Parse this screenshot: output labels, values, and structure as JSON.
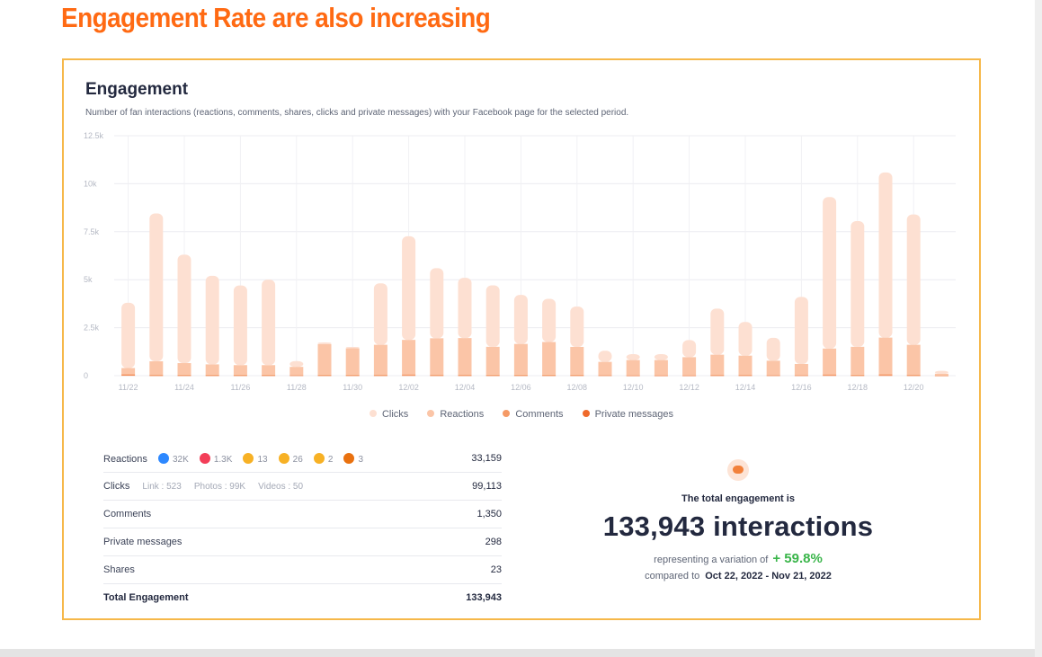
{
  "slide": {
    "title": "Engagement Rate are also increasing"
  },
  "card": {
    "title": "Engagement",
    "subtitle": "Number of fan interactions (reactions, comments, shares, clicks and private messages) with your Facebook page for the selected period."
  },
  "colors": {
    "title": "#ff6a13",
    "clicks": "#fde0d2",
    "reactions": "#fbc5a7",
    "comments": "#f59a66",
    "private": "#ef6a2b",
    "border": "#f6b84a",
    "positive": "#3ab54a"
  },
  "chart_data": {
    "type": "bar",
    "stacked": true,
    "y_ticks": [
      "0",
      "2.5k",
      "5k",
      "7.5k",
      "10k",
      "12.5k"
    ],
    "ylim": [
      0,
      12500
    ],
    "x_tick_labels": [
      "11/22",
      "11/24",
      "11/26",
      "11/28",
      "11/30",
      "12/02",
      "12/04",
      "12/06",
      "12/08",
      "12/10",
      "12/12",
      "12/14",
      "12/16",
      "12/18",
      "12/20"
    ],
    "categories": [
      "11/22",
      "11/23",
      "11/24",
      "11/25",
      "11/26",
      "11/27",
      "11/28",
      "11/29",
      "11/30",
      "12/01",
      "12/02",
      "12/03",
      "12/04",
      "12/05",
      "12/06",
      "12/07",
      "12/08",
      "12/09",
      "12/10",
      "12/11",
      "12/12",
      "12/13",
      "12/14",
      "12/15",
      "12/16",
      "12/17",
      "12/18",
      "12/19",
      "12/20",
      "12/21"
    ],
    "series": [
      {
        "name": "Private messages",
        "values": [
          20,
          10,
          10,
          10,
          10,
          10,
          10,
          10,
          10,
          10,
          15,
          10,
          10,
          10,
          10,
          10,
          10,
          10,
          5,
          5,
          5,
          10,
          10,
          10,
          10,
          15,
          10,
          15,
          10,
          5
        ]
      },
      {
        "name": "Comments",
        "values": [
          60,
          50,
          45,
          40,
          40,
          40,
          30,
          40,
          40,
          50,
          50,
          50,
          50,
          45,
          45,
          45,
          40,
          30,
          30,
          30,
          30,
          35,
          35,
          30,
          30,
          50,
          45,
          60,
          50,
          10
        ]
      },
      {
        "name": "Reactions",
        "values": [
          320,
          690,
          600,
          540,
          500,
          500,
          420,
          1600,
          1380,
          1550,
          1800,
          1890,
          1900,
          1450,
          1600,
          1700,
          1450,
          680,
          780,
          780,
          930,
          1050,
          1000,
          740,
          570,
          1350,
          1450,
          1910,
          1550,
          90
        ]
      },
      {
        "name": "Clicks",
        "values": [
          3400,
          7700,
          5650,
          4610,
          4150,
          4450,
          300,
          80,
          70,
          3200,
          5400,
          3650,
          3140,
          3200,
          2550,
          2250,
          2100,
          580,
          310,
          310,
          890,
          2400,
          1750,
          1190,
          3490,
          7890,
          6550,
          8600,
          6790,
          145
        ]
      }
    ],
    "legend_position": "bottom",
    "grid": true
  },
  "legend": [
    "Clicks",
    "Reactions",
    "Comments",
    "Private messages"
  ],
  "stats": {
    "reactions": {
      "label": "Reactions",
      "like": "32K",
      "love": "1.3K",
      "haha": "13",
      "wow": "26",
      "sad": "2",
      "angry": "3",
      "value": "33,159"
    },
    "clicks": {
      "label": "Clicks",
      "link": "Link : 523",
      "photos": "Photos : 99K",
      "videos": "Videos : 50",
      "value": "99,113"
    },
    "comments": {
      "label": "Comments",
      "value": "1,350"
    },
    "private_messages": {
      "label": "Private messages",
      "value": "298"
    },
    "shares": {
      "label": "Shares",
      "value": "23"
    },
    "total": {
      "label": "Total Engagement",
      "value": "133,943"
    }
  },
  "summary": {
    "heading": "The total engagement is",
    "total": "133,943 interactions",
    "variation_prefix": "representing a variation of",
    "variation": "+ 59.8%",
    "compare_prefix": "compared to",
    "compare_range": "Oct 22, 2022 - Nov 21, 2022"
  }
}
